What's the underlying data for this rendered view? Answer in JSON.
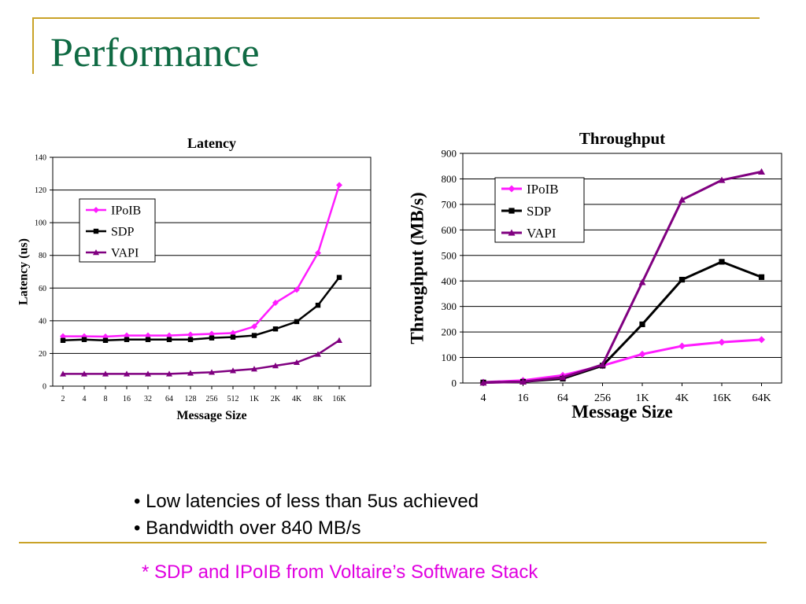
{
  "slide": {
    "title": "Performance",
    "bullets": [
      "Low latencies of less than 5us achieved",
      "Bandwidth over 840 MB/s"
    ],
    "footnote": "* SDP and IPoIB from Voltaire’s Software Stack"
  },
  "colors": {
    "title": "#0f6a43",
    "accent_line": "#c9a227",
    "footnote": "#e000e0"
  },
  "chart_data": [
    {
      "type": "line",
      "title": "Latency",
      "xlabel": "Message Size",
      "ylabel": "Latency (us)",
      "categories": [
        "2",
        "4",
        "8",
        "16",
        "32",
        "64",
        "128",
        "256",
        "512",
        "1K",
        "2K",
        "4K",
        "8K",
        "16K"
      ],
      "ylim": [
        0,
        140
      ],
      "yticks": [
        0,
        20,
        40,
        60,
        80,
        100,
        120,
        140
      ],
      "grid": true,
      "legend_position": "top-left",
      "series": [
        {
          "name": "IPoIB",
          "color": "#ff1cff",
          "marker": "diamond",
          "values": [
            30.5,
            30.5,
            30.3,
            31,
            31,
            31,
            31.5,
            32,
            32.5,
            36.5,
            51,
            59,
            81.5,
            123
          ]
        },
        {
          "name": "SDP",
          "color": "#000000",
          "marker": "square",
          "values": [
            28,
            28.5,
            28,
            28.5,
            28.5,
            28.5,
            28.5,
            29.5,
            30,
            31,
            35,
            39.5,
            49.5,
            66.5
          ]
        },
        {
          "name": "VAPI",
          "color": "#800080",
          "marker": "triangle",
          "values": [
            7.5,
            7.5,
            7.5,
            7.5,
            7.5,
            7.5,
            8,
            8.5,
            9.5,
            10.5,
            12.5,
            14.5,
            19.5,
            28
          ]
        }
      ]
    },
    {
      "type": "line",
      "title": "Throughput",
      "xlabel": "Message Size",
      "ylabel": "Throughput (MB/s)",
      "categories": [
        "4",
        "16",
        "64",
        "256",
        "1K",
        "4K",
        "16K",
        "64K"
      ],
      "ylim": [
        0,
        900
      ],
      "yticks": [
        0,
        100,
        200,
        300,
        400,
        500,
        600,
        700,
        800,
        900
      ],
      "grid": true,
      "legend_position": "top-right",
      "series": [
        {
          "name": "IPoIB",
          "color": "#ff1cff",
          "marker": "diamond",
          "values": [
            3,
            10,
            30,
            68,
            113,
            145,
            160,
            170
          ]
        },
        {
          "name": "SDP",
          "color": "#000000",
          "marker": "square",
          "values": [
            2,
            5,
            17,
            68,
            230,
            405,
            475,
            415
          ]
        },
        {
          "name": "VAPI",
          "color": "#800080",
          "marker": "triangle",
          "values": [
            1,
            5,
            22,
            72,
            395,
            718,
            795,
            828
          ]
        }
      ]
    }
  ]
}
